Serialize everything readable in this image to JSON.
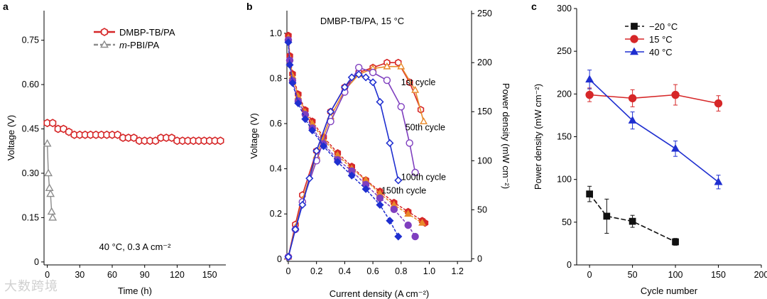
{
  "watermark": "大数跨境",
  "chart_data": [
    {
      "panel": "a",
      "type": "scatter",
      "xlabel": "Time (h)",
      "ylabel": "Voltage (V)",
      "xlim": [
        -3,
        165
      ],
      "ylim": [
        -0.01,
        0.85
      ],
      "xticks": [
        0,
        30,
        60,
        90,
        120,
        150
      ],
      "yticks": [
        0,
        0.15,
        0.3,
        0.45,
        0.6,
        0.75
      ],
      "ytick_labels": [
        "0",
        "0.15",
        "0.30",
        "0.45",
        "0.60",
        "0.75"
      ],
      "annotation": "40 °C, 0.3 A cm⁻²",
      "legend": "top-center",
      "series": [
        {
          "name": "DMBP-TB/PA",
          "color": "#d62728",
          "marker": "hexagon-open",
          "x": [
            0,
            5,
            10,
            15,
            20,
            25,
            30,
            35,
            40,
            45,
            50,
            55,
            60,
            65,
            70,
            75,
            80,
            85,
            90,
            95,
            100,
            105,
            110,
            115,
            120,
            125,
            130,
            135,
            140,
            145,
            150,
            155,
            160
          ],
          "y": [
            0.47,
            0.47,
            0.45,
            0.45,
            0.44,
            0.43,
            0.43,
            0.43,
            0.43,
            0.43,
            0.43,
            0.43,
            0.43,
            0.43,
            0.42,
            0.42,
            0.42,
            0.41,
            0.41,
            0.41,
            0.41,
            0.42,
            0.42,
            0.42,
            0.41,
            0.41,
            0.41,
            0.41,
            0.41,
            0.41,
            0.41,
            0.41,
            0.41
          ]
        },
        {
          "name": "m-PBI/PA",
          "name_prefix": "m",
          "name_suffix": "-PBI/PA",
          "color": "#8c8c8c",
          "marker": "triangle-open",
          "x": [
            0,
            1,
            2,
            3,
            4,
            5
          ],
          "y": [
            0.4,
            0.3,
            0.25,
            0.23,
            0.17,
            0.15
          ]
        }
      ]
    },
    {
      "panel": "b",
      "type": "line",
      "title": "DMBP-TB/PA, 15 °C",
      "xlabel": "Current density (A cm⁻²)",
      "ylabel": "Voltage (V)",
      "y2label": "Power density (mW cm⁻²)",
      "xlim": [
        -0.01,
        1.3
      ],
      "ylim": [
        -0.01,
        1.1
      ],
      "y2lim": [
        -2.6,
        253
      ],
      "xticks": [
        0,
        0.2,
        0.4,
        0.6,
        0.8,
        1.0,
        1.2
      ],
      "xtick_labels": [
        "0",
        "0.2",
        "0.4",
        "0.6",
        "0.8",
        "1.0",
        "1.2"
      ],
      "yticks": [
        0,
        0.2,
        0.4,
        0.6,
        0.8,
        1.0
      ],
      "ytick_labels": [
        "0",
        "0.2",
        "0.4",
        "0.6",
        "0.8",
        "1.0"
      ],
      "y2ticks": [
        0,
        50,
        100,
        150,
        200,
        250
      ],
      "annotations": [
        {
          "text": "1st cycle",
          "x": 0.8,
          "y": 0.77
        },
        {
          "text": "50th cycle",
          "x": 0.83,
          "y": 0.57
        },
        {
          "text": "100th cycle",
          "x": 0.8,
          "y": 0.35
        },
        {
          "text": "150th cycle",
          "x": 0.66,
          "y": 0.29
        }
      ],
      "series": [
        {
          "name": "1st cycle",
          "color": "#d62728",
          "voltage": {
            "x": [
              0,
              0.01,
              0.03,
              0.07,
              0.12,
              0.17,
              0.25,
              0.35,
              0.45,
              0.55,
              0.65,
              0.75,
              0.85,
              0.95,
              0.97
            ],
            "y": [
              0.99,
              0.9,
              0.82,
              0.73,
              0.66,
              0.61,
              0.54,
              0.47,
              0.41,
              0.35,
              0.3,
              0.25,
              0.21,
              0.17,
              0.16
            ]
          },
          "power": {
            "x": [
              0,
              0.05,
              0.1,
              0.2,
              0.3,
              0.4,
              0.5,
              0.6,
              0.7,
              0.78,
              0.86,
              0.94
            ],
            "y": [
              2,
              35,
              65,
              110,
              150,
              175,
              190,
              195,
              200,
              200,
              180,
              152
            ]
          }
        },
        {
          "name": "50th cycle",
          "color": "#e8892a",
          "voltage": {
            "x": [
              0,
              0.01,
              0.03,
              0.07,
              0.12,
              0.17,
              0.25,
              0.35,
              0.45,
              0.55,
              0.65,
              0.75,
              0.85,
              0.95
            ],
            "y": [
              0.98,
              0.89,
              0.81,
              0.72,
              0.65,
              0.6,
              0.53,
              0.46,
              0.4,
              0.35,
              0.29,
              0.24,
              0.2,
              0.16
            ]
          },
          "power": {
            "x": [
              0,
              0.05,
              0.1,
              0.2,
              0.3,
              0.4,
              0.5,
              0.6,
              0.7,
              0.8,
              0.9,
              0.96
            ],
            "y": [
              2,
              32,
              60,
              105,
              145,
              172,
              188,
              194,
              196,
              196,
              172,
              140
            ]
          }
        },
        {
          "name": "100th cycle",
          "color": "#7f3fbf",
          "voltage": {
            "x": [
              0,
              0.01,
              0.03,
              0.07,
              0.12,
              0.17,
              0.25,
              0.35,
              0.45,
              0.55,
              0.65,
              0.75,
              0.85,
              0.9
            ],
            "y": [
              0.97,
              0.88,
              0.79,
              0.7,
              0.64,
              0.58,
              0.51,
              0.44,
              0.39,
              0.33,
              0.27,
              0.22,
              0.15,
              0.1
            ]
          },
          "power": {
            "x": [
              0,
              0.05,
              0.1,
              0.2,
              0.3,
              0.4,
              0.5,
              0.6,
              0.7,
              0.8,
              0.86,
              0.9
            ],
            "y": [
              2,
              30,
              58,
              100,
              140,
              170,
              195,
              190,
              182,
              155,
              118,
              88
            ]
          }
        },
        {
          "name": "150th cycle",
          "color": "#1f2fd0",
          "voltage": {
            "x": [
              0,
              0.01,
              0.03,
              0.07,
              0.12,
              0.17,
              0.25,
              0.35,
              0.45,
              0.55,
              0.65,
              0.72,
              0.78
            ],
            "y": [
              0.96,
              0.86,
              0.78,
              0.69,
              0.62,
              0.57,
              0.5,
              0.43,
              0.37,
              0.31,
              0.24,
              0.17,
              0.1
            ]
          },
          "power": {
            "x": [
              0,
              0.05,
              0.1,
              0.15,
              0.2,
              0.3,
              0.4,
              0.45,
              0.5,
              0.55,
              0.6,
              0.65,
              0.72,
              0.78
            ],
            "y": [
              2,
              30,
              55,
              82,
              110,
              150,
              175,
              185,
              188,
              185,
              180,
              160,
              118,
              80
            ]
          }
        }
      ]
    },
    {
      "panel": "c",
      "type": "line",
      "xlabel": "Cycle number",
      "ylabel": "Power density (mW cm⁻²)",
      "xlim": [
        -15,
        200
      ],
      "ylim": [
        0,
        300
      ],
      "xticks": [
        0,
        50,
        100,
        150,
        200
      ],
      "yticks": [
        0,
        50,
        100,
        150,
        200,
        250,
        300
      ],
      "legend": "top-left",
      "series": [
        {
          "name": "−20 °C",
          "color": "#111111",
          "marker": "square",
          "dashed": true,
          "x": [
            0,
            20,
            50,
            100
          ],
          "y": [
            83,
            57,
            51,
            27
          ],
          "err": [
            9,
            20,
            7,
            4
          ]
        },
        {
          "name": "15 °C",
          "color": "#d62728",
          "marker": "circle",
          "x": [
            0,
            50,
            100,
            150
          ],
          "y": [
            199,
            195,
            199,
            189
          ],
          "err": [
            8,
            10,
            12,
            9
          ]
        },
        {
          "name": "40 °C",
          "color": "#1f2fd0",
          "marker": "triangle",
          "x": [
            0,
            50,
            100,
            150
          ],
          "y": [
            217,
            169,
            136,
            97
          ],
          "err": [
            11,
            10,
            9,
            8
          ]
        }
      ]
    }
  ]
}
